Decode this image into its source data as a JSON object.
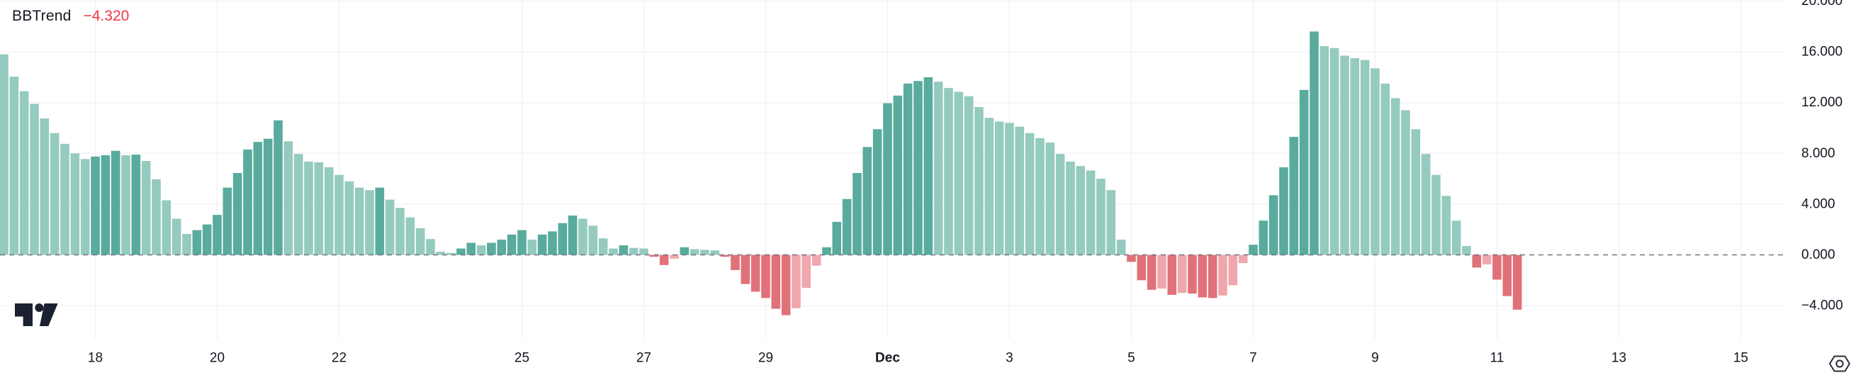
{
  "legend": {
    "indicator_title": "BBTrend",
    "value_label": "−4.320",
    "value_color": "#f23645"
  },
  "palette": {
    "bar_up_strong": "#58ab9d",
    "bar_up_weak": "#95cabf",
    "bar_down_strong": "#e17179",
    "bar_down_weak": "#f0a6ad",
    "grid": "#f0f2f6",
    "zero_dash": "#70757f",
    "axis_text": "#131722",
    "background": "#ffffff",
    "logo": "#1b2130",
    "icon_stroke": "#2a2e39"
  },
  "y_axis": {
    "ticks": [
      {
        "label": "20.000",
        "value": 20
      },
      {
        "label": "16.000",
        "value": 16
      },
      {
        "label": "12.000",
        "value": 12
      },
      {
        "label": "8.000",
        "value": 8
      },
      {
        "label": "4.000",
        "value": 4
      },
      {
        "label": "0.000",
        "value": 0
      },
      {
        "label": "−4.000",
        "value": -4
      }
    ]
  },
  "x_axis": {
    "ticks": [
      {
        "label": "18",
        "bar": 10,
        "bold": false
      },
      {
        "label": "20",
        "bar": 22,
        "bold": false
      },
      {
        "label": "22",
        "bar": 34,
        "bold": false
      },
      {
        "label": "25",
        "bar": 52,
        "bold": false
      },
      {
        "label": "27",
        "bar": 64,
        "bold": false
      },
      {
        "label": "29",
        "bar": 76,
        "bold": false
      },
      {
        "label": "Dec",
        "bar": 88,
        "bold": true
      },
      {
        "label": "3",
        "bar": 100,
        "bold": false
      },
      {
        "label": "5",
        "bar": 112,
        "bold": false
      },
      {
        "label": "7",
        "bar": 124,
        "bold": false
      },
      {
        "label": "9",
        "bar": 136,
        "bold": false
      },
      {
        "label": "11",
        "bar": 148,
        "bold": false
      },
      {
        "label": "13",
        "bar": 160,
        "bold": false
      },
      {
        "label": "15",
        "bar": 172,
        "bold": false
      }
    ]
  },
  "icons": {
    "settings": "hexagon-with-dot",
    "brand": "tradingview-logo"
  },
  "chart_data": {
    "type": "bar",
    "title": "BBTrend",
    "current_value": -4.32,
    "ylim": [
      -6.3,
      20.1
    ],
    "grid": true,
    "zero_line": "dashed",
    "legend_position": "top-left",
    "color_rule": "strong shade when bar extends further from zero than previous bar, weak shade when it contracts; green above zero, red below",
    "x_categories": [
      "18",
      "20",
      "22",
      "25",
      "27",
      "29",
      "Dec",
      "3",
      "5",
      "7",
      "9",
      "11",
      "13",
      "15"
    ],
    "values": [
      15.8,
      14.05,
      12.9,
      11.9,
      10.75,
      9.6,
      8.75,
      8.0,
      7.55,
      7.75,
      7.85,
      8.2,
      7.85,
      7.9,
      7.4,
      5.95,
      4.3,
      2.85,
      1.65,
      1.95,
      2.4,
      3.15,
      5.3,
      6.45,
      8.3,
      8.9,
      9.15,
      10.6,
      8.95,
      7.95,
      7.35,
      7.3,
      6.9,
      6.3,
      5.8,
      5.3,
      5.1,
      5.3,
      4.35,
      3.7,
      2.95,
      2.1,
      1.25,
      0.25,
      0.15,
      0.5,
      0.95,
      0.75,
      0.95,
      1.2,
      1.6,
      1.95,
      1.2,
      1.6,
      1.85,
      2.5,
      3.1,
      2.85,
      2.3,
      1.3,
      0.5,
      0.75,
      0.55,
      0.5,
      -0.15,
      -0.8,
      -0.3,
      0.6,
      0.45,
      0.4,
      0.35,
      -0.15,
      -1.2,
      -2.3,
      -2.9,
      -3.4,
      -4.25,
      -4.75,
      -4.2,
      -2.6,
      -0.85,
      0.6,
      2.6,
      4.4,
      6.45,
      8.5,
      9.9,
      11.95,
      12.55,
      13.5,
      13.7,
      14.0,
      13.65,
      13.15,
      12.85,
      12.5,
      11.65,
      10.8,
      10.5,
      10.4,
      10.1,
      9.6,
      9.2,
      8.85,
      7.95,
      7.35,
      7.0,
      6.65,
      6.0,
      5.1,
      1.2,
      -0.55,
      -2.0,
      -2.75,
      -2.65,
      -3.15,
      -3.0,
      -3.05,
      -3.35,
      -3.4,
      -3.2,
      -2.4,
      -0.65,
      0.8,
      2.7,
      4.7,
      6.9,
      9.3,
      13.0,
      17.6,
      16.45,
      16.3,
      15.7,
      15.5,
      15.35,
      14.7,
      13.5,
      12.35,
      11.4,
      9.9,
      7.95,
      6.3,
      4.65,
      2.7,
      0.7,
      -1.0,
      -0.75,
      -1.95,
      -3.25,
      -4.32
    ]
  }
}
